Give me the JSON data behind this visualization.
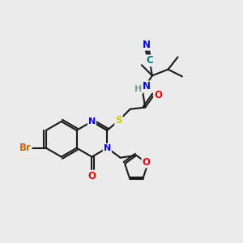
{
  "background_color": "#ebebeb",
  "bond_color": "#1a1a1a",
  "atom_colors": {
    "N": "#0000ee",
    "O": "#ee0000",
    "S": "#cccc00",
    "Br": "#cc6600",
    "C_teal": "#008080",
    "H_gray": "#7a9a9a"
  },
  "figsize": [
    3.0,
    3.0
  ],
  "dpi": 100
}
